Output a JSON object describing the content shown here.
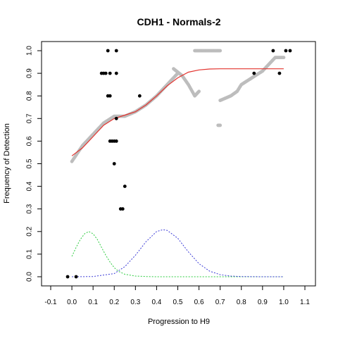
{
  "chart_data": {
    "type": "scatter",
    "title": "CDH1 - Normals-2",
    "xlabel": "Progression to H9",
    "ylabel": "Frequency of Detection",
    "xlim": [
      -0.1,
      1.1
    ],
    "ylim": [
      0.0,
      1.0
    ],
    "x_ticks": [
      "-0.1",
      "0.0",
      "0.1",
      "0.2",
      "0.3",
      "0.4",
      "0.5",
      "0.6",
      "0.7",
      "0.8",
      "0.9",
      "1.0",
      "1.1"
    ],
    "y_ticks": [
      "0.0",
      "0.1",
      "0.2",
      "0.3",
      "0.4",
      "0.5",
      "0.6",
      "0.7",
      "0.8",
      "0.9",
      "1.0"
    ],
    "grid": false,
    "colors": {
      "fitted": "#e3342f",
      "gray_points": "#bdbdbd",
      "black_points": "#000000",
      "green_density": "#2ecc40",
      "blue_density": "#3b3bd6"
    },
    "series": [
      {
        "kind": "black-points",
        "points": [
          [
            -0.02,
            0.0
          ],
          [
            0.02,
            0.0
          ],
          [
            0.14,
            0.9
          ],
          [
            0.15,
            0.9
          ],
          [
            0.16,
            0.9
          ],
          [
            0.18,
            0.9
          ],
          [
            0.21,
            0.9
          ],
          [
            0.17,
            1.0
          ],
          [
            0.21,
            1.0
          ],
          [
            0.17,
            0.8
          ],
          [
            0.18,
            0.8
          ],
          [
            0.32,
            0.8
          ],
          [
            0.21,
            0.7
          ],
          [
            0.18,
            0.6
          ],
          [
            0.19,
            0.6
          ],
          [
            0.2,
            0.6
          ],
          [
            0.21,
            0.6
          ],
          [
            0.2,
            0.5
          ],
          [
            0.25,
            0.4
          ],
          [
            0.23,
            0.3
          ],
          [
            0.24,
            0.3
          ],
          [
            0.86,
            0.9
          ],
          [
            0.98,
            0.9
          ],
          [
            0.95,
            1.0
          ],
          [
            1.01,
            1.0
          ],
          [
            1.03,
            1.0
          ]
        ]
      },
      {
        "kind": "gray-segments",
        "segments": [
          [
            [
              0.0,
              0.51
            ],
            [
              0.05,
              0.58
            ],
            [
              0.1,
              0.63
            ],
            [
              0.15,
              0.68
            ],
            [
              0.2,
              0.71
            ],
            [
              0.25,
              0.71
            ],
            [
              0.3,
              0.73
            ],
            [
              0.35,
              0.76
            ],
            [
              0.4,
              0.8
            ],
            [
              0.45,
              0.85
            ],
            [
              0.5,
              0.9
            ]
          ],
          [
            [
              0.48,
              0.92
            ],
            [
              0.52,
              0.89
            ],
            [
              0.55,
              0.85
            ],
            [
              0.58,
              0.8
            ],
            [
              0.6,
              0.82
            ]
          ],
          [
            [
              0.58,
              1.0
            ],
            [
              0.7,
              1.0
            ]
          ],
          [
            [
              0.69,
              0.67
            ],
            [
              0.7,
              0.67
            ]
          ],
          [
            [
              0.7,
              0.78
            ],
            [
              0.75,
              0.8
            ],
            [
              0.78,
              0.82
            ],
            [
              0.8,
              0.85
            ],
            [
              0.85,
              0.88
            ],
            [
              0.9,
              0.91
            ],
            [
              0.93,
              0.94
            ],
            [
              0.96,
              0.97
            ],
            [
              1.0,
              0.97
            ]
          ]
        ]
      },
      {
        "kind": "fitted-curve",
        "points": [
          [
            0.0,
            0.535
          ],
          [
            0.05,
            0.57
          ],
          [
            0.1,
            0.62
          ],
          [
            0.15,
            0.67
          ],
          [
            0.2,
            0.7
          ],
          [
            0.25,
            0.715
          ],
          [
            0.3,
            0.73
          ],
          [
            0.35,
            0.76
          ],
          [
            0.4,
            0.8
          ],
          [
            0.45,
            0.845
          ],
          [
            0.5,
            0.88
          ],
          [
            0.55,
            0.905
          ],
          [
            0.6,
            0.915
          ],
          [
            0.65,
            0.919
          ],
          [
            0.7,
            0.92
          ],
          [
            0.8,
            0.92
          ],
          [
            0.9,
            0.92
          ],
          [
            1.0,
            0.92
          ]
        ]
      },
      {
        "kind": "green-density",
        "points": [
          [
            0.0,
            0.09
          ],
          [
            0.02,
            0.13
          ],
          [
            0.04,
            0.165
          ],
          [
            0.06,
            0.19
          ],
          [
            0.08,
            0.2
          ],
          [
            0.1,
            0.19
          ],
          [
            0.12,
            0.165
          ],
          [
            0.14,
            0.13
          ],
          [
            0.16,
            0.095
          ],
          [
            0.18,
            0.065
          ],
          [
            0.2,
            0.04
          ],
          [
            0.22,
            0.024
          ],
          [
            0.25,
            0.011
          ],
          [
            0.3,
            0.003
          ],
          [
            0.35,
            0.001
          ],
          [
            0.4,
            0.0
          ],
          [
            1.0,
            0.0
          ]
        ]
      },
      {
        "kind": "blue-density",
        "points": [
          [
            0.0,
            0.0
          ],
          [
            0.1,
            0.001
          ],
          [
            0.2,
            0.014
          ],
          [
            0.25,
            0.045
          ],
          [
            0.3,
            0.095
          ],
          [
            0.35,
            0.155
          ],
          [
            0.4,
            0.2
          ],
          [
            0.43,
            0.208
          ],
          [
            0.45,
            0.205
          ],
          [
            0.5,
            0.17
          ],
          [
            0.55,
            0.11
          ],
          [
            0.6,
            0.058
          ],
          [
            0.65,
            0.025
          ],
          [
            0.7,
            0.009
          ],
          [
            0.75,
            0.003
          ],
          [
            0.8,
            0.001
          ],
          [
            0.9,
            0.0
          ],
          [
            1.0,
            0.0
          ]
        ]
      }
    ]
  }
}
